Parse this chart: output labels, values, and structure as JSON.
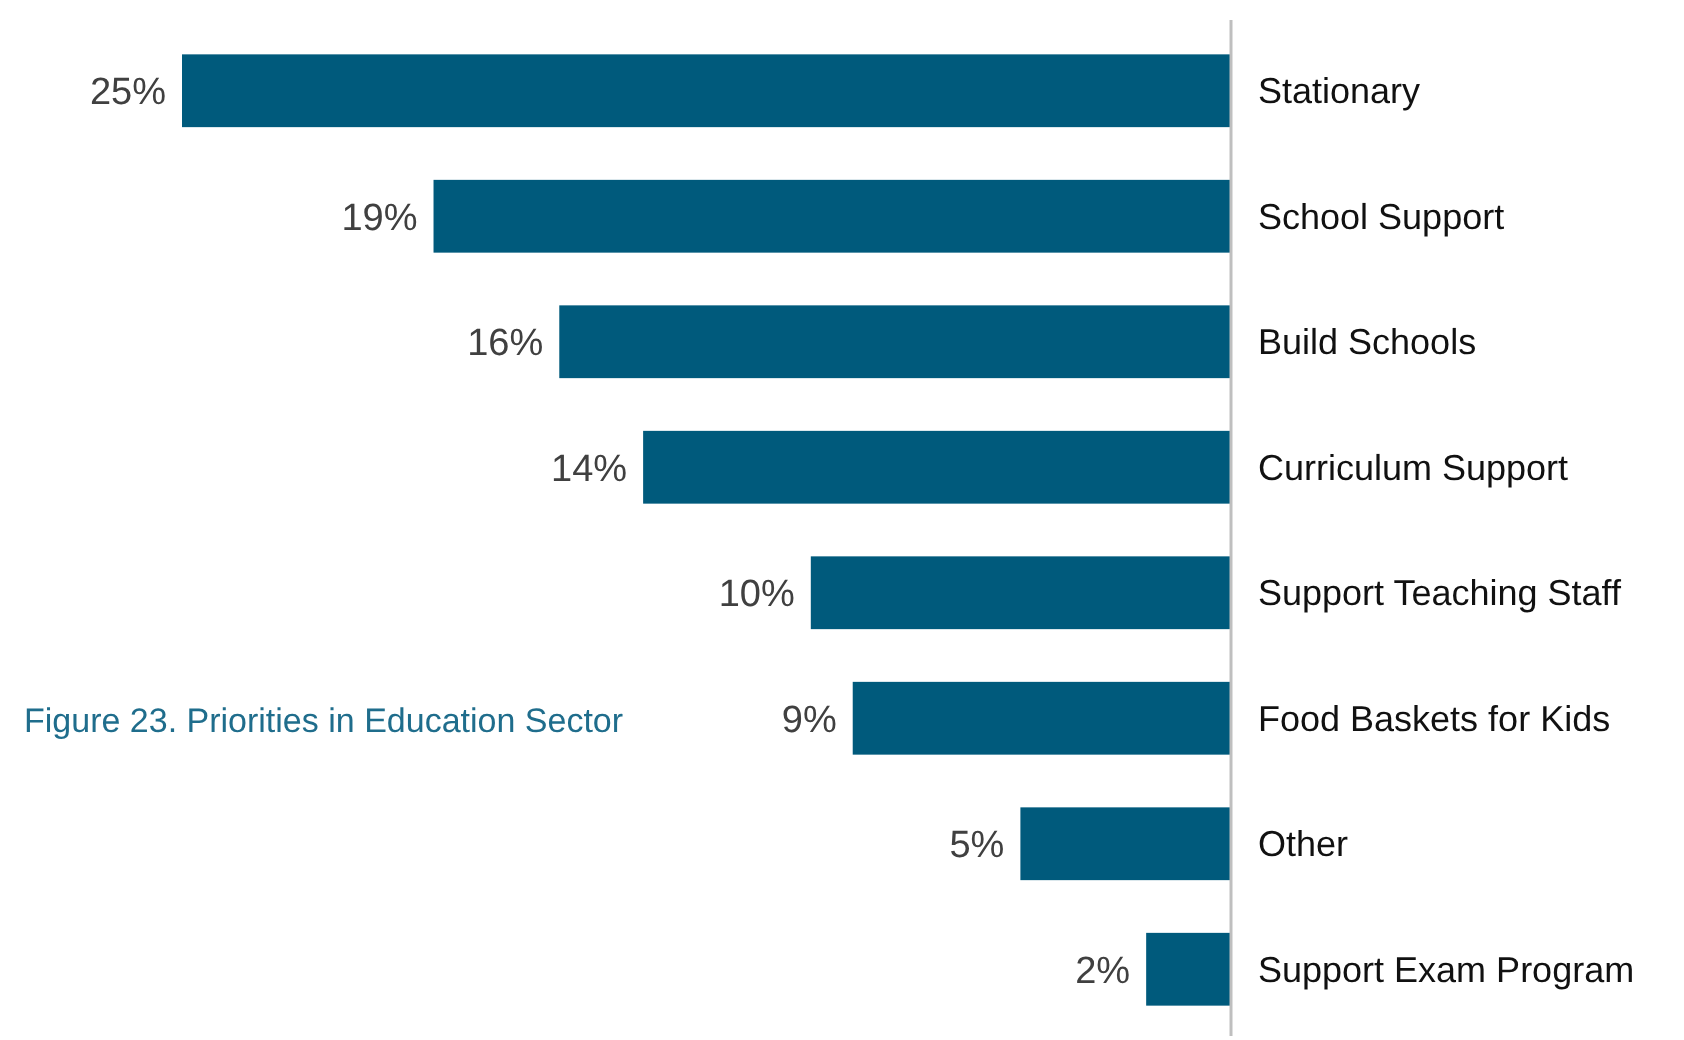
{
  "chart_data": {
    "type": "bar",
    "orientation": "horizontal",
    "title": "Figure 23. Priorities in Education Sector",
    "categories": [
      "Stationary",
      "School Support",
      "Build Schools",
      "Curriculum Support",
      "Support Teaching Staff",
      "Food Baskets for Kids",
      "Other",
      "Support Exam Program"
    ],
    "values": [
      25,
      19,
      16,
      14,
      10,
      9,
      5,
      2
    ],
    "value_labels": [
      "25%",
      "19%",
      "16%",
      "14%",
      "10%",
      "9%",
      "5%",
      "2%"
    ],
    "color": "#005a7c"
  }
}
